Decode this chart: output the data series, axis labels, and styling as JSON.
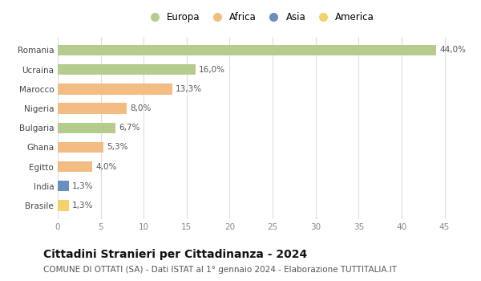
{
  "countries": [
    "Romania",
    "Ucraina",
    "Marocco",
    "Nigeria",
    "Bulgaria",
    "Ghana",
    "Egitto",
    "India",
    "Brasile"
  ],
  "values": [
    44.0,
    16.0,
    13.3,
    8.0,
    6.7,
    5.3,
    4.0,
    1.3,
    1.3
  ],
  "labels": [
    "44,0%",
    "16,0%",
    "13,3%",
    "8,0%",
    "6,7%",
    "5,3%",
    "4,0%",
    "1,3%",
    "1,3%"
  ],
  "colors": [
    "#b5cc8e",
    "#b5cc8e",
    "#f2bc82",
    "#f2bc82",
    "#b5cc8e",
    "#f2bc82",
    "#f2bc82",
    "#6a8ec2",
    "#f5d16e"
  ],
  "legend_labels": [
    "Europa",
    "Africa",
    "Asia",
    "America"
  ],
  "legend_colors": [
    "#b5cc8e",
    "#f2bc82",
    "#6a8ec2",
    "#f5d16e"
  ],
  "xlim": [
    0,
    47
  ],
  "xticks": [
    0,
    5,
    10,
    15,
    20,
    25,
    30,
    35,
    40,
    45
  ],
  "title": "Cittadini Stranieri per Cittadinanza - 2024",
  "subtitle": "COMUNE DI OTTATI (SA) - Dati ISTAT al 1° gennaio 2024 - Elaborazione TUTTITALIA.IT",
  "background_color": "#ffffff",
  "grid_color": "#dddddd",
  "bar_height": 0.55,
  "label_fontsize": 7.5,
  "tick_label_fontsize": 7.5,
  "xtick_fontsize": 7.5,
  "title_fontsize": 10,
  "subtitle_fontsize": 7.5,
  "legend_fontsize": 8.5
}
